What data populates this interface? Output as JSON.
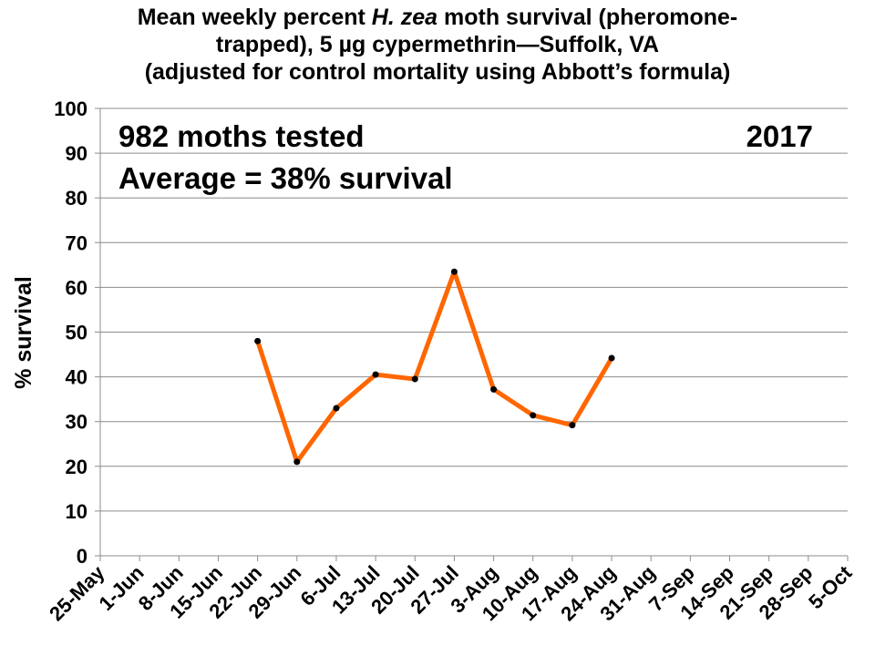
{
  "chart_data": {
    "type": "line",
    "title": {
      "line1_pre": "Mean weekly percent ",
      "line1_italic": "H. zea",
      "line1_post": " moth survival (pheromone-",
      "line2": "trapped), 5 µg cypermethrin—Suffolk, VA",
      "line3": "(adjusted for control mortality using Abbott’s formula)"
    },
    "ylabel": "% survival",
    "xlabel": "",
    "ylim": [
      0,
      100
    ],
    "yticks": [
      0,
      10,
      20,
      30,
      40,
      50,
      60,
      70,
      80,
      90,
      100
    ],
    "categories": [
      "25-May",
      "1-Jun",
      "8-Jun",
      "15-Jun",
      "22-Jun",
      "29-Jun",
      "6-Jul",
      "13-Jul",
      "20-Jul",
      "27-Jul",
      "3-Aug",
      "10-Aug",
      "17-Aug",
      "24-Aug",
      "31-Aug",
      "7-Sep",
      "14-Sep",
      "21-Sep",
      "28-Sep",
      "5-Oct"
    ],
    "series": [
      {
        "values": [
          null,
          null,
          null,
          null,
          48,
          21,
          33,
          40.5,
          39.5,
          63.5,
          37.2,
          31.4,
          29.2,
          44.2,
          null,
          null,
          null,
          null,
          null,
          null
        ]
      }
    ],
    "line_color": "#FF6600",
    "marker_color": "#000000",
    "grid": true,
    "annotations": {
      "moths_tested": "982 moths tested",
      "average": "Average = 38% survival",
      "year": "2017"
    }
  }
}
